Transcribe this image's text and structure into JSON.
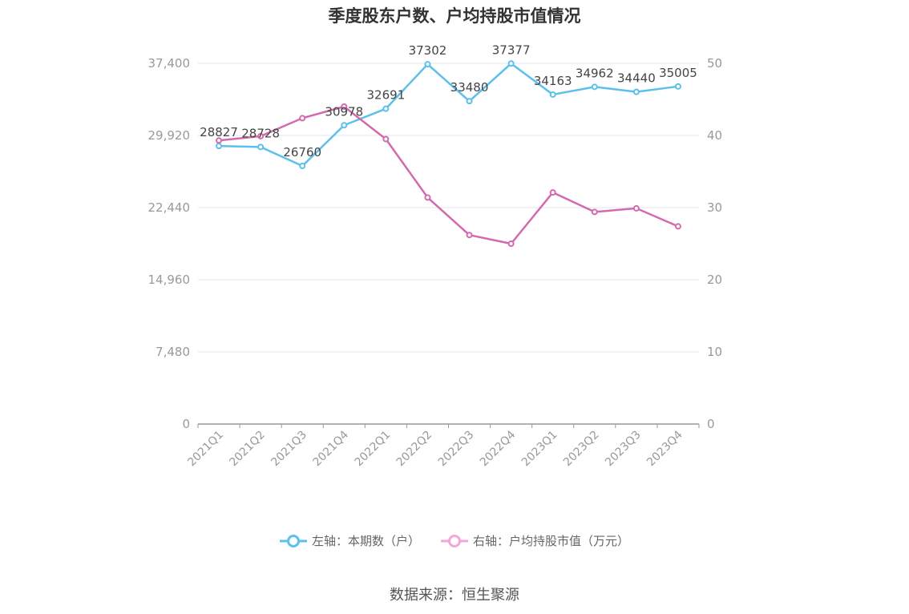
{
  "chart_data": {
    "type": "line",
    "title": "季度股东户数、户均持股市值情况",
    "categories": [
      "2021Q1",
      "2021Q2",
      "2021Q3",
      "2021Q4",
      "2022Q1",
      "2022Q2",
      "2022Q3",
      "2022Q4",
      "2023Q1",
      "2023Q2",
      "2023Q3",
      "2023Q4"
    ],
    "left_axis": {
      "ylim": [
        0,
        44880
      ],
      "ticks": [
        0,
        7480,
        14960,
        22440,
        29920,
        37400
      ],
      "tick_labels": [
        "0",
        "7,480",
        "14,960",
        "22,440",
        "29,920",
        "37,400"
      ]
    },
    "right_axis": {
      "ylim": [
        0,
        60
      ],
      "ticks": [
        0,
        10,
        20,
        30,
        40,
        50
      ],
      "tick_labels": [
        "0",
        "10",
        "20",
        "30",
        "40",
        "50"
      ]
    },
    "series": [
      {
        "name": "左轴：本期数（户）",
        "axis": "left",
        "color": "#5bc0eb",
        "values": [
          28827,
          28728,
          26760,
          30978,
          32691,
          37302,
          33480,
          37377,
          34163,
          34962,
          34440,
          35005
        ],
        "labels": [
          "28827",
          "28728",
          "26760",
          "30978",
          "32691",
          "37302",
          "33480",
          "37377",
          "34163",
          "34962",
          "34440",
          "35005"
        ]
      },
      {
        "name": "右轴：户均持股市值（万元）",
        "axis": "right",
        "color": "#d46aae",
        "values": [
          39.3,
          39.9,
          42.4,
          44.0,
          39.5,
          31.4,
          26.2,
          25.0,
          32.1,
          29.4,
          29.9,
          27.4
        ]
      }
    ],
    "grid": true,
    "legend_position": "bottom"
  },
  "legend": {
    "left_label": "左轴：本期数（户）",
    "right_label": "右轴：户均持股市值（万元）"
  },
  "source": "数据来源：恒生聚源"
}
